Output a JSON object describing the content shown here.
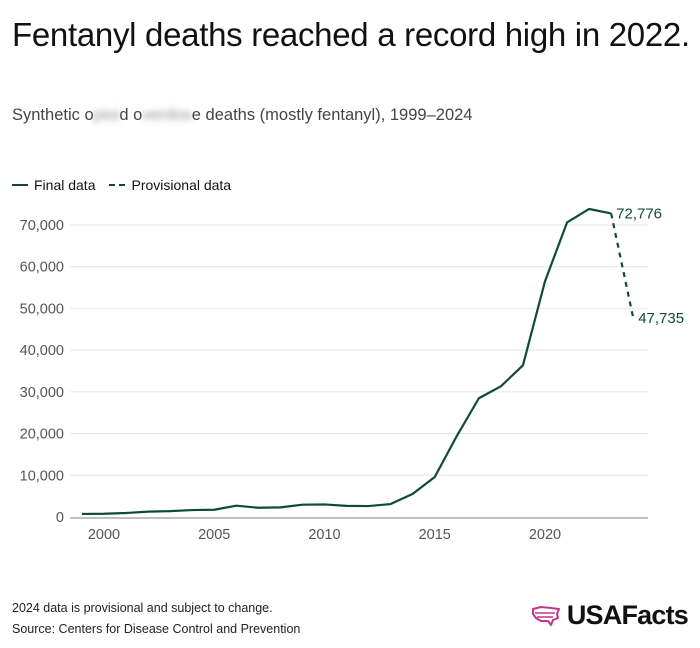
{
  "title": "Fentanyl deaths reached a record high in 2022.",
  "subtitle": {
    "part1": "Synthetic o",
    "blur1": "pioi",
    "part2": "d o",
    "blur2": "verdos",
    "part3": "e deaths (mostly fentanyl), 1999–2024"
  },
  "footnote": {
    "note": "2024 data is provisional and subject to change.",
    "source": "Source: Centers for Disease Control and Prevention"
  },
  "logo": {
    "text": "USAFacts",
    "color": "#c2378b"
  },
  "chart_data": {
    "type": "line",
    "line_color": "#0e4a3a",
    "ylim": [
      0,
      75000
    ],
    "xlim": [
      1999,
      2024
    ],
    "yticks": [
      0,
      10000,
      20000,
      30000,
      40000,
      50000,
      60000,
      70000
    ],
    "ytick_labels": [
      "0",
      "10,000",
      "20,000",
      "30,000",
      "40,000",
      "50,000",
      "60,000",
      "70,000"
    ],
    "xticks": [
      2000,
      2005,
      2010,
      2015,
      2020
    ],
    "xtick_labels": [
      "2000",
      "2005",
      "2010",
      "2015",
      "2020"
    ],
    "grid": true,
    "legend_position": "top-left",
    "series": [
      {
        "name": "Final data",
        "style": "solid",
        "x": [
          1999,
          2000,
          2001,
          2002,
          2003,
          2004,
          2005,
          2006,
          2007,
          2008,
          2009,
          2010,
          2011,
          2012,
          2013,
          2014,
          2015,
          2016,
          2017,
          2018,
          2019,
          2020,
          2021,
          2022,
          2023
        ],
        "y": [
          730,
          782,
          957,
          1295,
          1400,
          1664,
          1742,
          2707,
          2213,
          2306,
          2946,
          3007,
          2666,
          2628,
          3105,
          5544,
          9580,
          19413,
          28466,
          31335,
          36359,
          56516,
          70601,
          73838,
          72776
        ]
      },
      {
        "name": "Provisional data",
        "style": "dashed",
        "x": [
          2023,
          2024
        ],
        "y": [
          72776,
          47735
        ]
      }
    ],
    "annotations": [
      {
        "x": 2023,
        "y": 72776,
        "text": "72,776"
      },
      {
        "x": 2024,
        "y": 47735,
        "text": "47,735"
      }
    ]
  }
}
